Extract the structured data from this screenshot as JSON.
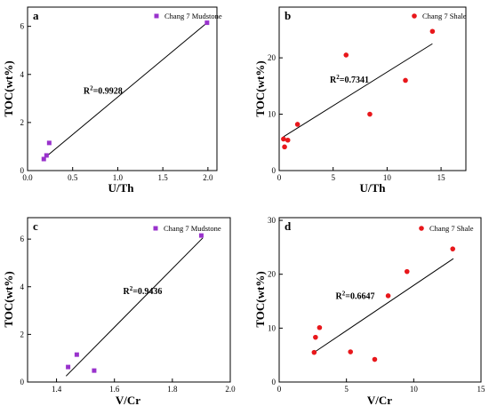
{
  "colors": {
    "mudstone": "#9932cc",
    "shale": "#e8171b",
    "axis": "#000000"
  },
  "chart_data": [
    {
      "panel": "a",
      "type": "scatter",
      "series": [
        {
          "name": "Chang 7 Mudstone",
          "marker": "square",
          "color": "#9932cc",
          "x": [
            0.18,
            0.21,
            0.24,
            1.99
          ],
          "y": [
            0.48,
            0.63,
            1.15,
            6.15
          ]
        }
      ],
      "fit_line": {
        "x": [
          0.18,
          1.99
        ],
        "y": [
          0.5,
          6.15
        ]
      },
      "annotation": {
        "base": "R",
        "sup": "2",
        "rest": "=0.9928",
        "x": 0.62,
        "y": 3.2
      },
      "xlabel": "U/Th",
      "ylabel": "TOC(wt%)",
      "xlim": [
        0.0,
        2.1
      ],
      "ylim": [
        0.0,
        6.8
      ],
      "xticks": [
        0.0,
        0.5,
        1.0,
        1.5,
        2.0
      ],
      "xtick_labels": [
        "0.0",
        "0.5",
        "1.0",
        "1.5",
        "2.0"
      ],
      "yticks": [
        0,
        2,
        4,
        6
      ],
      "ytick_labels": [
        "0",
        "2",
        "4",
        "6"
      ],
      "legend_position": "top-right"
    },
    {
      "panel": "b",
      "type": "scatter",
      "series": [
        {
          "name": "Chang 7 Shale",
          "marker": "circle",
          "color": "#e8171b",
          "x": [
            0.4,
            0.5,
            0.8,
            1.7,
            6.2,
            8.4,
            11.7,
            14.2
          ],
          "y": [
            5.6,
            4.2,
            5.4,
            8.2,
            20.5,
            10.0,
            16.0,
            24.7
          ]
        }
      ],
      "fit_line": {
        "x": [
          0.4,
          14.2
        ],
        "y": [
          6.0,
          22.5
        ]
      },
      "annotation": {
        "base": "R",
        "sup": "2",
        "rest": "=0.7341",
        "x": 4.7,
        "y": 15.6
      },
      "xlabel": "U/Th",
      "ylabel": "TOC(wt%)",
      "xlim": [
        0,
        17.3
      ],
      "ylim": [
        0,
        29
      ],
      "xticks": [
        0,
        5,
        10,
        15
      ],
      "xtick_labels": [
        "0",
        "5",
        "10",
        "15"
      ],
      "yticks": [
        0,
        10,
        20
      ],
      "ytick_labels": [
        "0",
        "10",
        "20"
      ],
      "legend_position": "top-right"
    },
    {
      "panel": "c",
      "type": "scatter",
      "series": [
        {
          "name": "Chang 7 Mudstone",
          "marker": "square",
          "color": "#9932cc",
          "x": [
            1.44,
            1.47,
            1.53,
            1.9
          ],
          "y": [
            0.63,
            1.15,
            0.48,
            6.15
          ]
        }
      ],
      "fit_line": {
        "x": [
          1.433,
          1.905
        ],
        "y": [
          0.25,
          6.05
        ]
      },
      "annotation": {
        "base": "R",
        "sup": "2",
        "rest": "=0.9436",
        "x": 1.63,
        "y": 3.7
      },
      "xlabel": "V/Cr",
      "ylabel": "TOC(wt%)",
      "xlim": [
        1.3,
        2.0
      ],
      "ylim": [
        0,
        6.9
      ],
      "xticks": [
        1.4,
        1.6,
        1.8,
        2.0
      ],
      "xtick_labels": [
        "1.4",
        "1.6",
        "1.8",
        "2.0"
      ],
      "yticks": [
        0,
        2,
        4,
        6
      ],
      "ytick_labels": [
        "0",
        "2",
        "4",
        "6"
      ],
      "legend_position": "top-right"
    },
    {
      "panel": "d",
      "type": "scatter",
      "series": [
        {
          "name": "Chang 7 Shale",
          "marker": "circle",
          "color": "#e8171b",
          "x": [
            2.6,
            2.7,
            3.0,
            5.3,
            7.1,
            8.1,
            9.5,
            12.9
          ],
          "y": [
            5.5,
            8.3,
            10.1,
            5.6,
            4.2,
            16.0,
            20.5,
            24.7
          ]
        }
      ],
      "fit_line": {
        "x": [
          2.6,
          12.95
        ],
        "y": [
          5.5,
          22.9
        ]
      },
      "annotation": {
        "base": "R",
        "sup": "2",
        "rest": "=0.6647",
        "x": 4.2,
        "y": 15.4
      },
      "xlabel": "V/Cr",
      "ylabel": "TOC(wt%)",
      "xlim": [
        0,
        15
      ],
      "ylim": [
        0,
        30.5
      ],
      "xticks": [
        0,
        5,
        10,
        15
      ],
      "xtick_labels": [
        "0",
        "5",
        "10",
        "15"
      ],
      "yticks": [
        0,
        10,
        20,
        30
      ],
      "ytick_labels": [
        "0",
        "10",
        "20",
        "30"
      ],
      "legend_position": "top-right"
    }
  ]
}
